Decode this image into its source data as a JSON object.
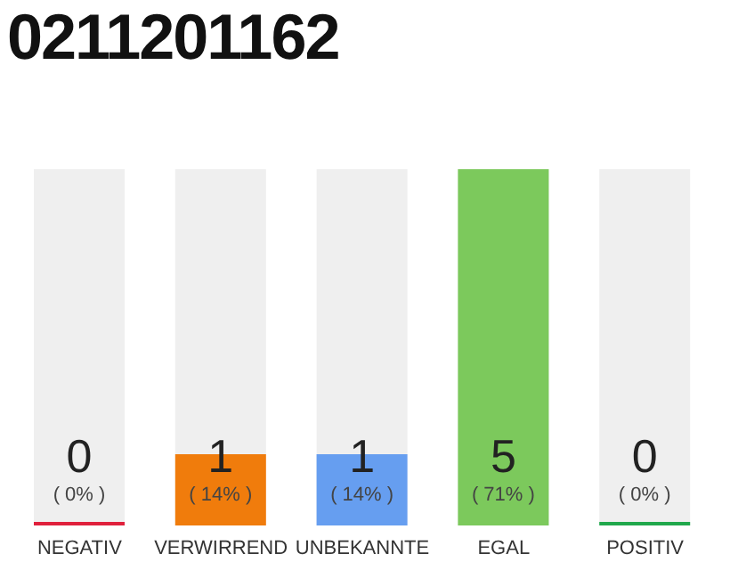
{
  "chart_data": {
    "type": "bar",
    "title": "0211201162",
    "categories": [
      "NEGATIV",
      "VERWIRREND",
      "UNBEKANNTE",
      "EGAL",
      "POSITIV"
    ],
    "values": [
      0,
      1,
      1,
      5,
      0
    ],
    "colors": [
      "#e0203c",
      "#f07c0c",
      "#669ef0",
      "#7cc95c",
      "#20a84c"
    ],
    "data_labels": true,
    "annotations": [
      "( 0% )",
      "( 14% )",
      "( 14% )",
      "( 71% )",
      "( 0% )"
    ],
    "grid": false,
    "legend": false
  }
}
